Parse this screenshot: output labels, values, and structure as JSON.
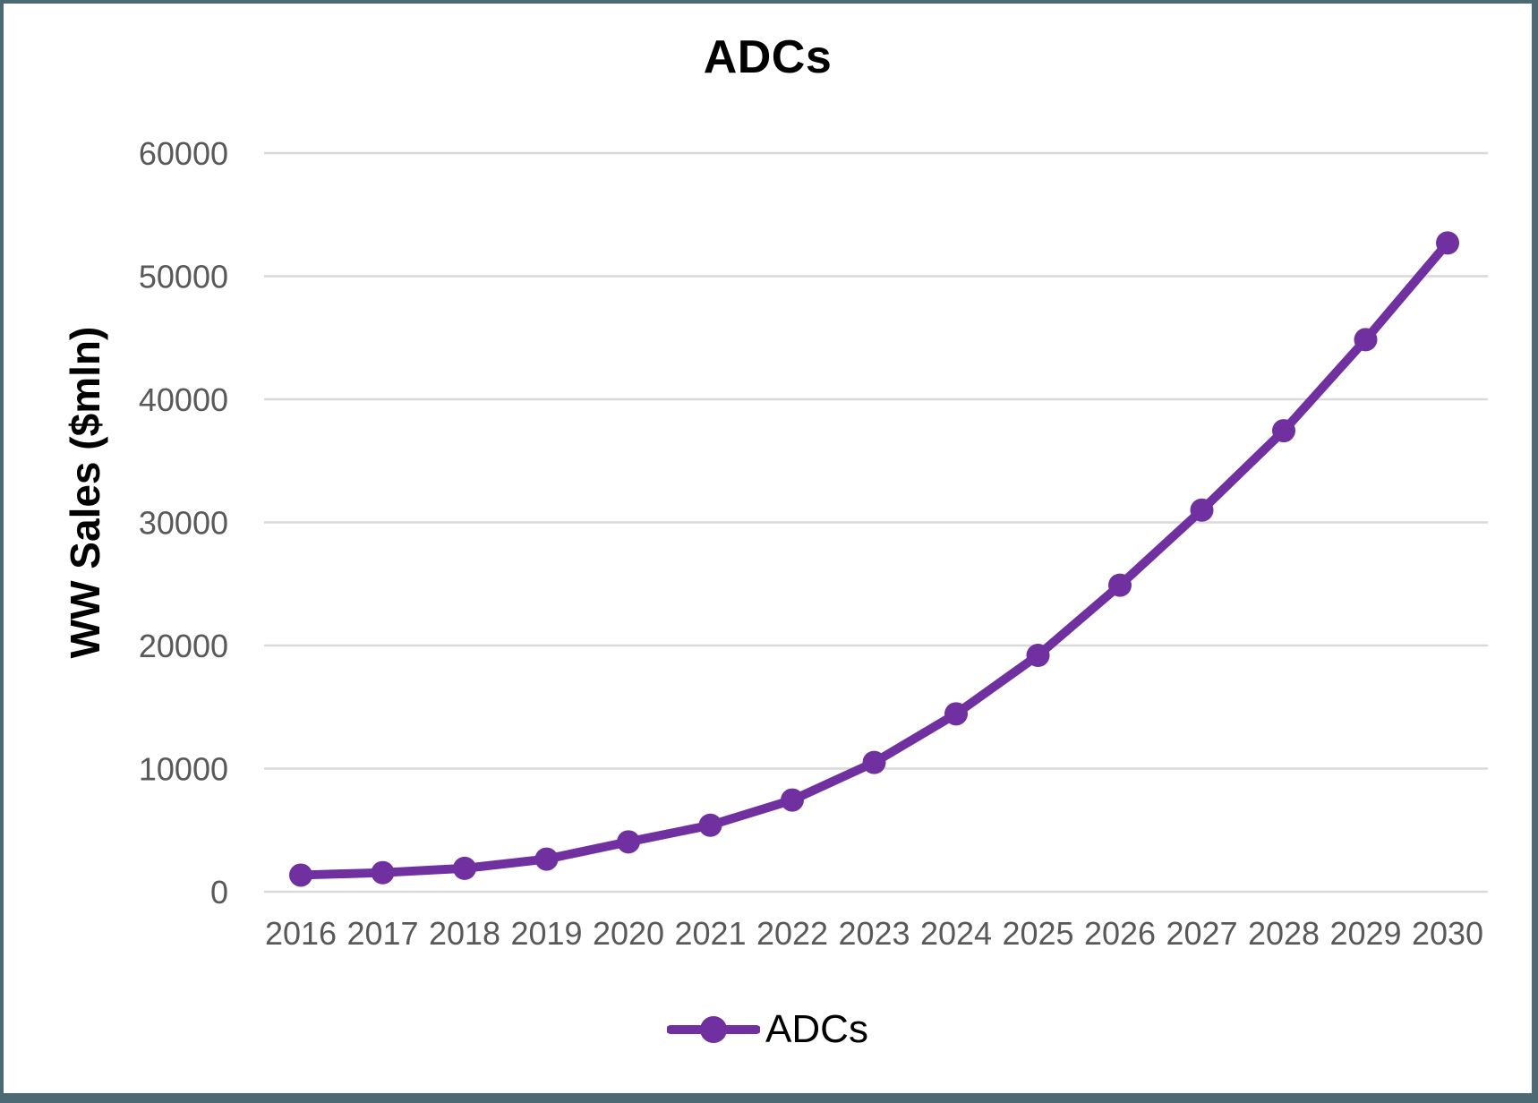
{
  "window": {
    "border_color": "#4d6973",
    "background": "#ffffff"
  },
  "colors": {
    "series_purple": "#7030A0",
    "gridline": "#d9d9d9",
    "tick_label": "#595959",
    "title_text": "#000000"
  },
  "chart_data": {
    "type": "line",
    "title": "ADCs",
    "ylabel": "WW Sales ($mln)",
    "categories": [
      "2016",
      "2017",
      "2018",
      "2019",
      "2020",
      "2021",
      "2022",
      "2023",
      "2024",
      "2025",
      "2026",
      "2027",
      "2028",
      "2029",
      "2030"
    ],
    "series": [
      {
        "name": "ADCs",
        "color": "#7030A0",
        "marker": "circle",
        "values": [
          1350,
          1550,
          1900,
          2650,
          4050,
          5400,
          7450,
          10500,
          14450,
          19200,
          24900,
          31000,
          37450,
          44850,
          52700
        ]
      }
    ],
    "ylim": [
      0,
      60000
    ],
    "yticks": [
      0,
      10000,
      20000,
      30000,
      40000,
      50000,
      60000
    ],
    "grid": "horizontal",
    "legend_position": "bottom"
  }
}
